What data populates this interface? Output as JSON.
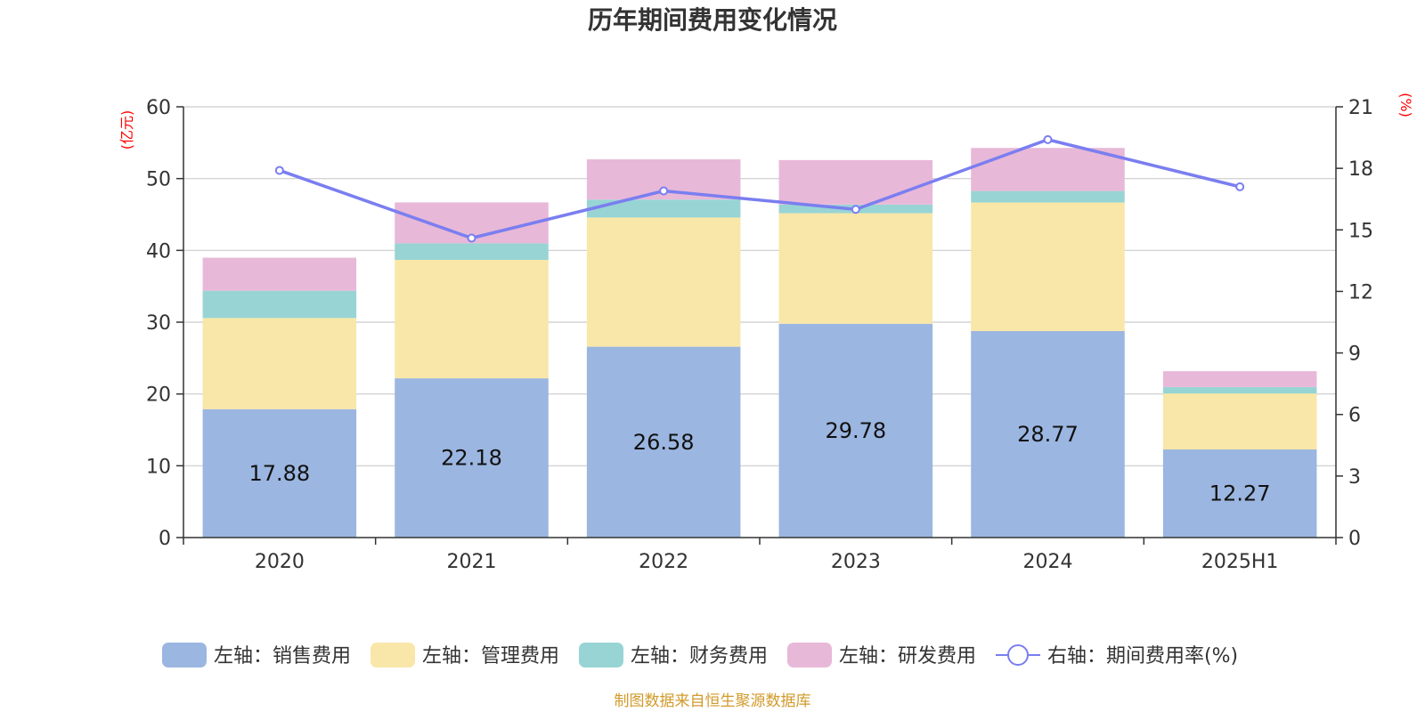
{
  "chart_data": {
    "type": "bar",
    "title": "历年期间费用变化情况",
    "categories": [
      "2020",
      "2021",
      "2022",
      "2023",
      "2024",
      "2025H1"
    ],
    "left_axis": {
      "unit": "(亿元)",
      "ylim": [
        0,
        60
      ],
      "ticks": [
        "0",
        "10",
        "20",
        "30",
        "40",
        "50",
        "60"
      ]
    },
    "right_axis": {
      "unit": "(%)",
      "ylim": [
        0,
        21
      ],
      "ticks": [
        "0",
        "3",
        "6",
        "9",
        "12",
        "15",
        "18",
        "21"
      ]
    },
    "grid": true,
    "series": [
      {
        "name": "左轴：销售费用",
        "type": "bar",
        "stack": true,
        "axis": "left",
        "color": "#9bb6e0",
        "values": [
          17.88,
          22.18,
          26.58,
          29.78,
          28.77,
          12.27
        ],
        "show_labels": true
      },
      {
        "name": "左轴：管理费用",
        "type": "bar",
        "stack": true,
        "axis": "left",
        "color": "#f8e7a8",
        "values": [
          12.7,
          16.5,
          18.0,
          15.4,
          17.9,
          7.8
        ],
        "show_labels": false
      },
      {
        "name": "左轴：财务费用",
        "type": "bar",
        "stack": true,
        "axis": "left",
        "color": "#98d4d4",
        "values": [
          3.8,
          2.3,
          2.5,
          1.2,
          1.6,
          0.9
        ],
        "show_labels": false
      },
      {
        "name": "左轴：研发费用",
        "type": "bar",
        "stack": true,
        "axis": "left",
        "color": "#e8b8d8",
        "values": [
          4.6,
          5.7,
          5.6,
          6.2,
          6.0,
          2.2
        ],
        "show_labels": false
      },
      {
        "name": "右轴：期间费用率(%)",
        "type": "line",
        "axis": "right",
        "color": "#7a7ef0",
        "values": [
          17.9,
          14.6,
          16.9,
          16.0,
          19.4,
          17.1
        ],
        "show_labels": false
      }
    ],
    "legend_position": "bottom",
    "source": "制图数据来自恒生聚源数据库"
  }
}
